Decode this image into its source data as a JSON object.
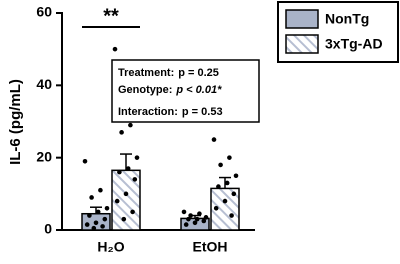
{
  "chart_data": {
    "type": "bar",
    "y_label": "IL-6 (pg/mL)",
    "categories": [
      "H₂O",
      "EtOH"
    ],
    "ylim": [
      0,
      60
    ],
    "yticks": [
      0,
      20,
      40,
      60
    ],
    "annotation": "**",
    "stats": [
      {
        "label": "Treatment:",
        "value": "p = 0.25"
      },
      {
        "label": "Genotype:",
        "value": "p < 0.01*"
      },
      {
        "label": "Interaction:",
        "value": "p = 0.53"
      }
    ],
    "series": [
      {
        "name": "NonTg",
        "color": "#a9b3c8",
        "hatch": false,
        "values": [
          4.5,
          3.2
        ],
        "errors": [
          1.8,
          0.8
        ],
        "points": [
          [
            19,
            11,
            9,
            6,
            5,
            4,
            3,
            2,
            1.5,
            1,
            0.5
          ],
          [
            5,
            4.5,
            4,
            3.5,
            3,
            3,
            2.5,
            2,
            1.5
          ]
        ]
      },
      {
        "name": "3xTg-AD",
        "color": "#b7bfd2",
        "hatch": true,
        "values": [
          16.5,
          11.5
        ],
        "errors": [
          4.5,
          3
        ],
        "points": [
          [
            50,
            29,
            27,
            20,
            17,
            16,
            14,
            10,
            8,
            5,
            3
          ],
          [
            25,
            20,
            18,
            15,
            13,
            12,
            10,
            8,
            6,
            4
          ]
        ]
      }
    ]
  }
}
